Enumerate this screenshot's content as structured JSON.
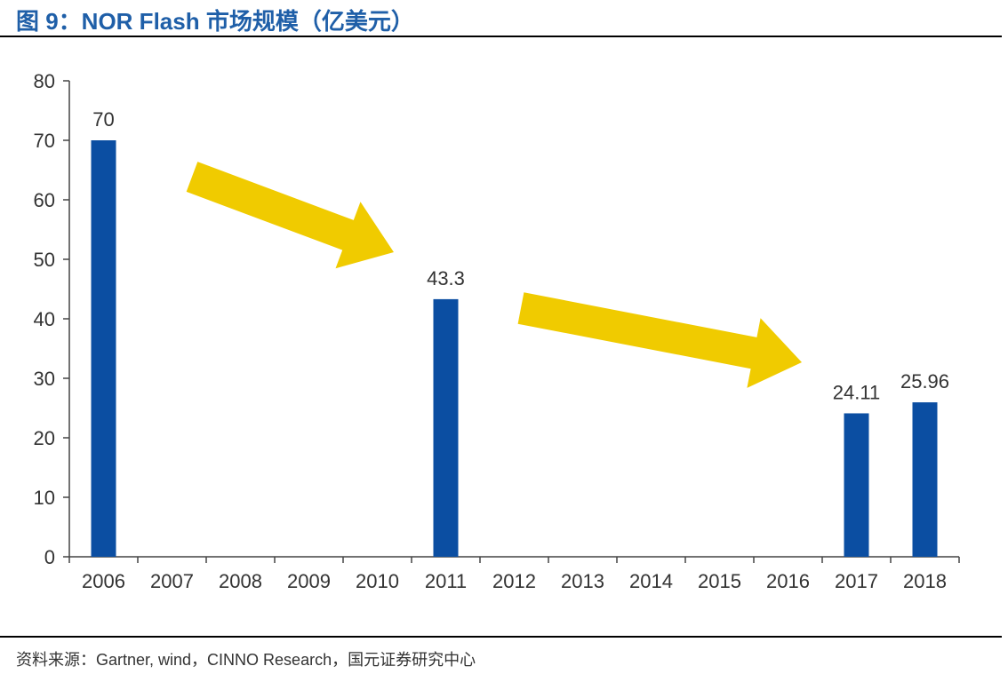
{
  "figure": {
    "title": "图 9：NOR Flash 市场规模（亿美元）",
    "source": "资料来源：Gartner, wind，CINNO Research，国元证券研究中心"
  },
  "colors": {
    "bar": "#0b4ea2",
    "arrow": "#f0cb00",
    "title": "#1f5fa8"
  },
  "chart_data": {
    "type": "bar",
    "title": "NOR Flash 市场规模（亿美元）",
    "xlabel": "",
    "ylabel": "",
    "categories": [
      "2006",
      "2007",
      "2008",
      "2009",
      "2010",
      "2011",
      "2012",
      "2013",
      "2014",
      "2015",
      "2016",
      "2017",
      "2018"
    ],
    "values": [
      70,
      null,
      null,
      null,
      null,
      43.3,
      null,
      null,
      null,
      null,
      null,
      24.11,
      25.96
    ],
    "data_labels": [
      "70",
      "",
      "",
      "",
      "",
      "43.3",
      "",
      "",
      "",
      "",
      "",
      "24.11",
      "25.96"
    ],
    "ylim": [
      0,
      80
    ],
    "yticks": [
      0,
      10,
      20,
      30,
      40,
      50,
      60,
      70,
      80
    ],
    "grid": false,
    "legend": "none",
    "annotations": [
      "downward-trend-arrow",
      "downward-trend-arrow"
    ]
  }
}
